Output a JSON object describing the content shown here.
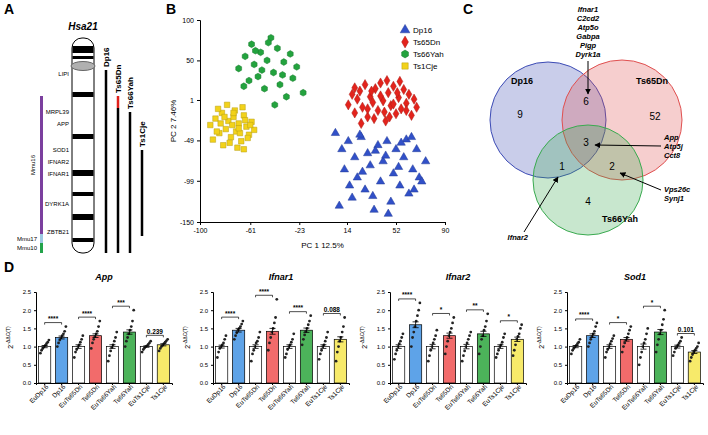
{
  "figure": {
    "panel_labels": [
      "A",
      "B",
      "C",
      "D"
    ]
  },
  "diagram_a": {
    "chromosome": "Hsa21",
    "genes": [
      "LIPI",
      "MRPL39",
      "APP",
      "SOD1",
      "IFNAR2",
      "IFNAR1",
      "DYRK1A",
      "ZBTB21"
    ],
    "mouse_chromosomes": [
      {
        "name": "Mmu16",
        "color": "#7b3f9e"
      },
      {
        "name": "Mmu17",
        "color": "#9ec9e2"
      },
      {
        "name": "Mmu10",
        "color": "#22a34a"
      }
    ],
    "models": [
      "Dp16",
      "Ts65Dn",
      "Ts66Yah",
      "Ts1Cje"
    ]
  },
  "venn_c": {
    "sets": [
      {
        "name": "Dp16",
        "color": "#3c4bb5"
      },
      {
        "name": "Ts65Dn",
        "color": "#e05050"
      },
      {
        "name": "Ts66Yah",
        "color": "#3aaa50"
      }
    ],
    "regions": [
      {
        "sets": [
          "Dp16"
        ],
        "count": 9
      },
      {
        "sets": [
          "Dp16",
          "Ts65Dn"
        ],
        "count": 6,
        "genes": [
          "Ifnar1",
          "C2cd2",
          "Atp5o",
          "Gabpa",
          "Pigp",
          "Dyrk1a"
        ]
      },
      {
        "sets": [
          "Ts65Dn"
        ],
        "count": 52
      },
      {
        "sets": [
          "Dp16",
          "Ts65Dn",
          "Ts66Yah"
        ],
        "count": 3,
        "genes": [
          "App",
          "Atp5j",
          "Cct8"
        ]
      },
      {
        "sets": [
          "Dp16",
          "Ts66Yah"
        ],
        "count": 1,
        "genes": [
          "Ifnar2"
        ]
      },
      {
        "sets": [
          "Ts65Dn",
          "Ts66Yah"
        ],
        "count": 2,
        "genes": [
          "Vps26c",
          "Synj1"
        ]
      },
      {
        "sets": [
          "Ts66Yah"
        ],
        "count": 4
      }
    ]
  },
  "chart_data": [
    {
      "type": "scatter",
      "x_label": "PC 1 12.5%",
      "y_label": "PC 2 7.46%",
      "xlim": [
        -100,
        90
      ],
      "ylim": [
        -150,
        100
      ],
      "xticks": [
        -100,
        -61,
        -23,
        14,
        52,
        90
      ],
      "yticks": [
        -150,
        -99,
        -49,
        1,
        50,
        100
      ],
      "legend": "top-right",
      "series": [
        {
          "name": "Dp16",
          "color": "#3150c8",
          "marker": "triangle",
          "x": [
            5,
            10,
            12,
            15,
            18,
            20,
            22,
            25,
            28,
            30,
            32,
            35,
            38,
            40,
            42,
            45,
            48,
            50,
            52,
            55,
            58,
            60,
            62,
            65,
            68,
            70,
            75,
            8,
            16,
            26,
            36,
            46,
            56,
            66,
            24,
            34,
            44,
            54,
            64,
            72
          ],
          "values": [
            -40,
            -60,
            -85,
            -50,
            -120,
            -70,
            -95,
            -45,
            -110,
            -65,
            -80,
            -135,
            -55,
            -100,
            -75,
            -50,
            -125,
            -90,
            -60,
            -105,
            -70,
            -48,
            -115,
            -85,
            -60,
            -95,
            -75,
            -130,
            -105,
            -88,
            -62,
            -140,
            -52,
            -110,
            -42,
            -118,
            -68,
            -82,
            -45,
            -100
          ]
        },
        {
          "name": "Ts65Dn",
          "color": "#e3231c",
          "marker": "diamond",
          "x": [
            15,
            18,
            20,
            22,
            24,
            26,
            28,
            30,
            32,
            34,
            36,
            38,
            40,
            42,
            44,
            46,
            48,
            50,
            52,
            54,
            56,
            58,
            60,
            62,
            64,
            66,
            68,
            25,
            35,
            45,
            55,
            30,
            40,
            50,
            60,
            20,
            33,
            43,
            53,
            47
          ],
          "values": [
            -5,
            8,
            -15,
            2,
            12,
            -8,
            20,
            -20,
            5,
            -2,
            15,
            -12,
            22,
            0,
            -25,
            10,
            -6,
            18,
            -16,
            4,
            -10,
            14,
            -3,
            8,
            -18,
            2,
            -8,
            -28,
            -22,
            25,
            24,
            -10,
            6,
            -4,
            -12,
            16,
            12,
            -14,
            10,
            -20
          ]
        },
        {
          "name": "Ts66Yah",
          "color": "#23a33e",
          "marker": "hexagon",
          "x": [
            -70,
            -65,
            -62,
            -60,
            -58,
            -55,
            -53,
            -50,
            -48,
            -45,
            -43,
            -40,
            -38,
            -35,
            -33,
            -30,
            -28,
            -25,
            -20,
            -57,
            -47,
            -42,
            -52,
            -66,
            -36
          ],
          "values": [
            40,
            55,
            25,
            70,
            45,
            30,
            60,
            15,
            50,
            78,
            35,
            65,
            20,
            48,
            5,
            58,
            28,
            42,
            10,
            62,
            72,
            -5,
            38,
            18,
            32
          ]
        },
        {
          "name": "Ts1Cje",
          "color": "#f2d21a",
          "marker": "square",
          "x": [
            -92,
            -88,
            -85,
            -83,
            -80,
            -78,
            -76,
            -74,
            -72,
            -70,
            -68,
            -66,
            -64,
            -62,
            -60,
            -58,
            -90,
            -86,
            -82,
            -79,
            -75,
            -73,
            -71,
            -69,
            -67,
            -65,
            -63,
            -84,
            -77,
            -81,
            -87,
            -70,
            -74,
            -66,
            -61
          ],
          "values": [
            -30,
            -22,
            -40,
            -15,
            -35,
            -25,
            -45,
            -20,
            -38,
            -28,
            -50,
            -18,
            -32,
            -42,
            -26,
            -36,
            -48,
            -10,
            -55,
            -5,
            -30,
            -12,
            -58,
            -40,
            -8,
            -24,
            -46,
            -28,
            -52,
            -20,
            -38,
            -34,
            -15,
            -60,
            -30
          ]
        }
      ]
    },
    {
      "type": "bar",
      "title": "App",
      "y_label": "2-ΔΔC(T)",
      "categories": [
        "EuDp16",
        "Dp16",
        "EuTs65Dn",
        "Ts65Dn",
        "EuTs66Yah",
        "Ts66Yah",
        "EuTs1Cje",
        "Ts1Cje"
      ],
      "values": [
        1.0,
        1.25,
        1.0,
        1.3,
        1.0,
        1.4,
        1.0,
        1.05
      ],
      "errors": [
        0.03,
        0.04,
        0.05,
        0.05,
        0.05,
        0.06,
        0.02,
        0.03
      ],
      "points": [
        [
          0.82,
          0.9,
          0.95,
          1.0,
          1.03,
          1.08,
          1.12,
          1.18
        ],
        [
          1.0,
          1.1,
          1.18,
          1.24,
          1.3,
          1.35,
          1.42,
          1.55
        ],
        [
          0.7,
          0.85,
          0.92,
          1.0,
          1.05,
          1.12,
          1.2,
          1.3
        ],
        [
          0.95,
          1.1,
          1.2,
          1.28,
          1.35,
          1.42,
          1.55,
          1.7
        ],
        [
          0.6,
          0.75,
          0.88,
          0.98,
          1.05,
          1.15,
          1.25,
          1.4
        ],
        [
          1.0,
          1.15,
          1.25,
          1.35,
          1.45,
          1.55,
          1.7,
          2.0
        ],
        [
          0.85,
          0.92,
          0.96,
          1.0,
          1.02,
          1.06,
          1.1,
          1.15
        ],
        [
          0.88,
          0.95,
          1.0,
          1.04,
          1.08,
          1.12,
          1.16,
          1.2
        ]
      ],
      "colors": [
        "#ffffff",
        "#5ea3e8",
        "#ffffff",
        "#f26b6b",
        "#ffffff",
        "#4cb35a",
        "#ffffff",
        "#f7ea6a"
      ],
      "annotations": [
        "****",
        "****",
        "***",
        "0.239"
      ],
      "ylim": [
        0,
        2.5
      ],
      "yticks": [
        {
          "value": 0,
          "label": "0.0"
        },
        {
          "value": 0.5,
          "label": "0.5"
        },
        {
          "value": 1,
          "label": "1.0"
        },
        {
          "value": 1.5,
          "label": "1.5"
        },
        {
          "value": 2,
          "label": "2.0"
        },
        {
          "value": 2.5,
          "label": "2.5"
        }
      ]
    },
    {
      "type": "bar",
      "title": "Ifnar1",
      "y_label": "2-ΔΔC(T)",
      "categories": [
        "EuDp16",
        "Dp16",
        "EuTs65Dn",
        "Ts65Dn",
        "EuTs66Yah",
        "Ts66Yah",
        "EuTs1Cje",
        "Ts1Cje"
      ],
      "values": [
        1.0,
        1.45,
        1.0,
        1.42,
        1.0,
        1.45,
        1.0,
        1.2
      ],
      "errors": [
        0.04,
        0.05,
        0.05,
        0.08,
        0.05,
        0.06,
        0.05,
        0.07
      ],
      "points": [
        [
          0.7,
          0.85,
          0.95,
          1.0,
          1.05,
          1.1,
          1.2,
          1.3
        ],
        [
          1.2,
          1.3,
          1.38,
          1.45,
          1.5,
          1.55,
          1.62,
          1.7
        ],
        [
          0.6,
          0.8,
          0.9,
          1.0,
          1.1,
          1.15,
          1.25,
          1.4
        ],
        [
          0.9,
          1.1,
          1.25,
          1.4,
          1.5,
          1.65,
          1.8,
          2.3
        ],
        [
          0.7,
          0.8,
          0.92,
          1.0,
          1.05,
          1.12,
          1.2,
          1.35
        ],
        [
          1.05,
          1.2,
          1.32,
          1.42,
          1.5,
          1.6,
          1.7,
          1.85
        ],
        [
          0.65,
          0.8,
          0.9,
          1.0,
          1.05,
          1.15,
          1.25,
          1.4
        ],
        [
          0.6,
          0.85,
          1.0,
          1.15,
          1.25,
          1.4,
          1.55,
          1.8
        ]
      ],
      "colors": [
        "#ffffff",
        "#5ea3e8",
        "#ffffff",
        "#f26b6b",
        "#ffffff",
        "#4cb35a",
        "#ffffff",
        "#f7ea6a"
      ],
      "annotations": [
        "****",
        "****",
        "****",
        "0.088"
      ],
      "ylim": [
        0,
        2.5
      ],
      "yticks": [
        {
          "value": 0,
          "label": "0.0"
        },
        {
          "value": 0.5,
          "label": "0.5"
        },
        {
          "value": 1,
          "label": "1.0"
        },
        {
          "value": 1.5,
          "label": "1.5"
        },
        {
          "value": 2,
          "label": "2.0"
        },
        {
          "value": 2.5,
          "label": "2.5"
        }
      ]
    },
    {
      "type": "bar",
      "title": "Ifnar2",
      "y_label": "2-ΔΔC(T)",
      "categories": [
        "EuDp16",
        "Dp16",
        "EuTs65Dn",
        "Ts65Dn",
        "EuTs66Yah",
        "Ts66Yah",
        "EuTs1Cje",
        "Ts1Cje"
      ],
      "values": [
        1.0,
        1.6,
        1.0,
        1.3,
        1.0,
        1.35,
        1.0,
        1.2
      ],
      "errors": [
        0.05,
        0.08,
        0.06,
        0.07,
        0.06,
        0.07,
        0.05,
        0.06
      ],
      "points": [
        [
          0.65,
          0.8,
          0.9,
          1.0,
          1.08,
          1.15,
          1.25,
          1.35
        ],
        [
          1.0,
          1.25,
          1.4,
          1.55,
          1.7,
          1.85,
          2.0,
          2.2
        ],
        [
          0.6,
          0.75,
          0.9,
          1.0,
          1.1,
          1.2,
          1.3,
          1.45
        ],
        [
          0.8,
          1.0,
          1.15,
          1.3,
          1.4,
          1.5,
          1.65,
          1.8
        ],
        [
          0.6,
          0.75,
          0.88,
          1.0,
          1.1,
          1.2,
          1.3,
          1.4
        ],
        [
          0.8,
          1.0,
          1.2,
          1.3,
          1.45,
          1.55,
          1.7,
          1.9
        ],
        [
          0.7,
          0.8,
          0.9,
          1.0,
          1.05,
          1.12,
          1.25,
          1.35
        ],
        [
          0.75,
          0.9,
          1.05,
          1.2,
          1.28,
          1.35,
          1.5,
          1.6
        ]
      ],
      "colors": [
        "#ffffff",
        "#5ea3e8",
        "#ffffff",
        "#f26b6b",
        "#ffffff",
        "#4cb35a",
        "#ffffff",
        "#f7ea6a"
      ],
      "annotations": [
        "****",
        "*",
        "**",
        "*"
      ],
      "ylim": [
        0,
        2.5
      ],
      "yticks": [
        {
          "value": 0,
          "label": "0.0"
        },
        {
          "value": 0.5,
          "label": "0.5"
        },
        {
          "value": 1,
          "label": "1.0"
        },
        {
          "value": 1.5,
          "label": "1.5"
        },
        {
          "value": 2,
          "label": "2.0"
        },
        {
          "value": 2.5,
          "label": "2.5"
        }
      ]
    },
    {
      "type": "bar",
      "title": "Sod1",
      "y_label": "2-ΔΔC(T)",
      "categories": [
        "EuDp16",
        "Dp16",
        "EuTs65Dn",
        "Ts65Dn",
        "EuTs66Yah",
        "Ts66Yah",
        "EuTs1Cje",
        "Ts1Cje"
      ],
      "values": [
        1.0,
        1.3,
        1.0,
        1.2,
        1.0,
        1.4,
        1.0,
        0.85
      ],
      "errors": [
        0.03,
        0.05,
        0.05,
        0.05,
        0.07,
        0.07,
        0.04,
        0.04
      ],
      "points": [
        [
          0.8,
          0.9,
          0.95,
          1.0,
          1.03,
          1.08,
          1.12,
          1.2
        ],
        [
          1.0,
          1.1,
          1.2,
          1.28,
          1.35,
          1.42,
          1.55,
          1.65
        ],
        [
          0.7,
          0.85,
          0.92,
          1.0,
          1.08,
          1.15,
          1.22,
          1.3
        ],
        [
          0.85,
          1.0,
          1.1,
          1.18,
          1.25,
          1.35,
          1.45,
          1.55
        ],
        [
          0.5,
          0.7,
          0.85,
          1.0,
          1.1,
          1.2,
          1.35,
          1.5
        ],
        [
          0.85,
          1.05,
          1.2,
          1.35,
          1.45,
          1.6,
          1.75,
          2.0
        ],
        [
          0.75,
          0.85,
          0.95,
          1.0,
          1.05,
          1.1,
          1.15,
          1.25
        ],
        [
          0.6,
          0.7,
          0.78,
          0.85,
          0.9,
          0.95,
          1.0,
          1.1
        ]
      ],
      "colors": [
        "#ffffff",
        "#5ea3e8",
        "#ffffff",
        "#f26b6b",
        "#ffffff",
        "#4cb35a",
        "#ffffff",
        "#f7ea6a"
      ],
      "annotations": [
        "****",
        "*",
        "*",
        "0.101"
      ],
      "ylim": [
        0,
        2.5
      ],
      "yticks": [
        {
          "value": 0,
          "label": "0.0"
        },
        {
          "value": 0.5,
          "label": "0.5"
        },
        {
          "value": 1,
          "label": "1.0"
        },
        {
          "value": 1.5,
          "label": "1.5"
        },
        {
          "value": 2,
          "label": "2.0"
        },
        {
          "value": 2.5,
          "label": "2.5"
        }
      ]
    }
  ]
}
